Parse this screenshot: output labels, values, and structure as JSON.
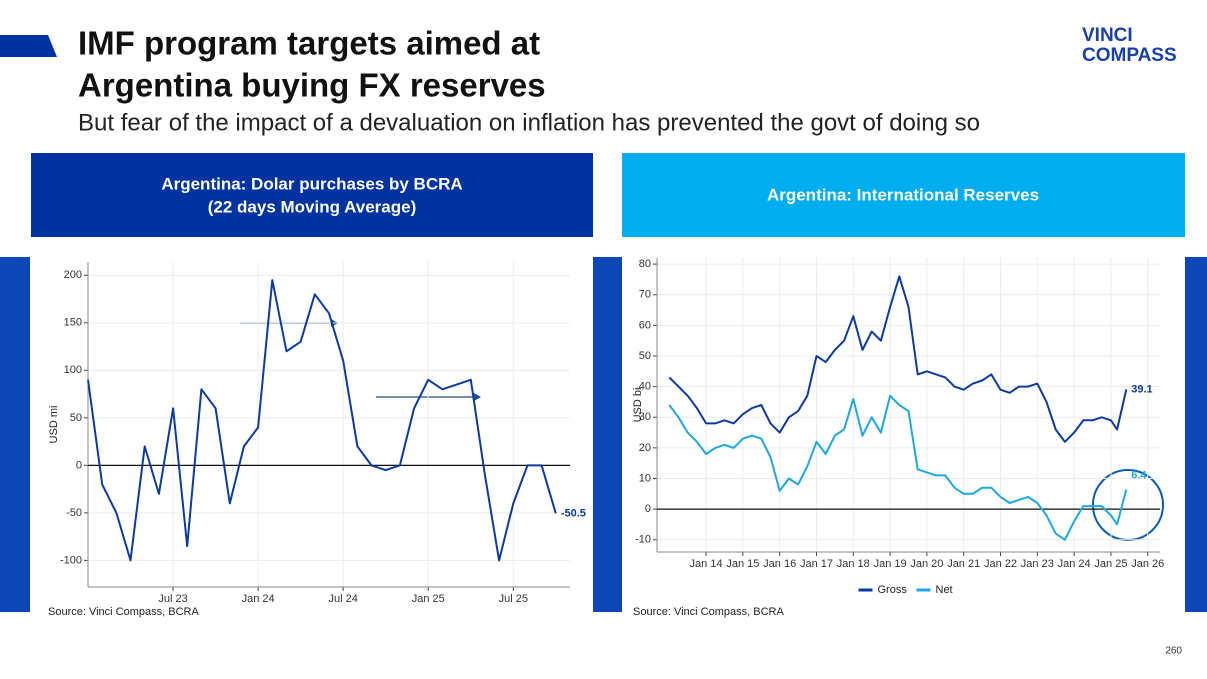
{
  "header": {
    "title": [
      "IMF program targets aimed at",
      "Argentina buying FX reserves"
    ],
    "subtitle": "But fear of the impact of a devaluation on inflation has prevented the govt of doing so",
    "logo": [
      "VINCI",
      "COMPASS"
    ]
  },
  "page_number": "260",
  "chart_data": [
    {
      "type": "line",
      "title": "Argentina: Dolar purchases by BCRA",
      "subtitle": "(22 days Moving Average)",
      "y_label": "USD mi",
      "source": "Source: Vinci Compass, BCRA",
      "grid": true,
      "reference_line": 0,
      "x": [
        "2023-01",
        "2023-02",
        "2023-03",
        "2023-04",
        "2023-05",
        "2023-06",
        "2023-07",
        "2023-08",
        "2023-09",
        "2023-10",
        "2023-11",
        "2023-12",
        "2024-01",
        "2024-02",
        "2024-03",
        "2024-04",
        "2024-05",
        "2024-06",
        "2024-07",
        "2024-08",
        "2024-09",
        "2024-10",
        "2024-11",
        "2024-12",
        "2025-01",
        "2025-02",
        "2025-03",
        "2025-04",
        "2025-05",
        "2025-06",
        "2025-07",
        "2025-08",
        "2025-09",
        "2025-10"
      ],
      "series": [
        {
          "color": "#0d3a9e",
          "values": [
            90,
            -20,
            -50,
            -100,
            20,
            -30,
            60,
            -85,
            80,
            60,
            -40,
            20,
            40,
            195,
            120,
            130,
            180,
            160,
            110,
            20,
            0,
            -5,
            0,
            60,
            90,
            80,
            85,
            90,
            -10,
            -100,
            -40,
            0,
            0,
            -50.5
          ]
        }
      ],
      "xlim": [
        "2023-01",
        "2025-11"
      ],
      "xticks": [
        {
          "value": "2023-07",
          "label": "Jul 23"
        },
        {
          "value": "2024-01",
          "label": "Jan 24"
        },
        {
          "value": "2024-07",
          "label": "Jul 24"
        },
        {
          "value": "2025-01",
          "label": "Jan 25"
        },
        {
          "value": "2025-07",
          "label": "Jul 25"
        }
      ],
      "ylim": [
        -128,
        214
      ],
      "yticks": [
        -100,
        -50,
        0,
        50,
        100,
        150,
        200
      ]
    },
    {
      "type": "line",
      "title": "Argentina: International Reserves",
      "y_label": "USD bi",
      "source": "Source: Vinci Compass, BCRA",
      "grid": true,
      "reference_line": 0,
      "x": [
        "2013-01",
        "2013-04",
        "2013-07",
        "2013-10",
        "2014-01",
        "2014-04",
        "2014-07",
        "2014-10",
        "2015-01",
        "2015-04",
        "2015-07",
        "2015-10",
        "2016-01",
        "2016-04",
        "2016-07",
        "2016-10",
        "2017-01",
        "2017-04",
        "2017-07",
        "2017-10",
        "2018-01",
        "2018-04",
        "2018-07",
        "2018-10",
        "2019-01",
        "2019-04",
        "2019-07",
        "2019-10",
        "2020-01",
        "2020-04",
        "2020-07",
        "2020-10",
        "2021-01",
        "2021-04",
        "2021-07",
        "2021-10",
        "2022-01",
        "2022-04",
        "2022-07",
        "2022-10",
        "2023-01",
        "2023-04",
        "2023-07",
        "2023-10",
        "2024-01",
        "2024-04",
        "2024-07",
        "2024-10",
        "2025-01",
        "2025-03",
        "2025-06"
      ],
      "series": [
        {
          "name": "Gross",
          "color": "#0d3a9e",
          "values": [
            43,
            40,
            37,
            33,
            28,
            28,
            29,
            28,
            31,
            33,
            34,
            28,
            25,
            30,
            32,
            37,
            50,
            48,
            52,
            55,
            63,
            52,
            58,
            55,
            66,
            76,
            66,
            44,
            45,
            44,
            43,
            40,
            39,
            41,
            42,
            44,
            39,
            38,
            40,
            40,
            41,
            35,
            26,
            22,
            25,
            29,
            29,
            30,
            29,
            26,
            39.1
          ]
        },
        {
          "name": "Net",
          "color": "#1ea7e1",
          "values": [
            34,
            30,
            25,
            22,
            18,
            20,
            21,
            20,
            23,
            24,
            23,
            17,
            6,
            10,
            8,
            14,
            22,
            18,
            24,
            26,
            36,
            24,
            30,
            25,
            37,
            34,
            32,
            13,
            12,
            11,
            11,
            7,
            5,
            5,
            7,
            7,
            4,
            2,
            3,
            4,
            2,
            -2,
            -8,
            -10,
            -4,
            1,
            1,
            1,
            -2,
            -5,
            6.4
          ]
        }
      ],
      "xlim": [
        "2012-09",
        "2026-05"
      ],
      "xticks": [
        {
          "value": "2014-01",
          "label": "Jan 14"
        },
        {
          "value": "2015-01",
          "label": "Jan 15"
        },
        {
          "value": "2016-01",
          "label": "Jan 16"
        },
        {
          "value": "2017-01",
          "label": "Jan 17"
        },
        {
          "value": "2018-01",
          "label": "Jan 18"
        },
        {
          "value": "2019-01",
          "label": "Jan 19"
        },
        {
          "value": "2020-01",
          "label": "Jan 20"
        },
        {
          "value": "2021-01",
          "label": "Jan 21"
        },
        {
          "value": "2022-01",
          "label": "Jan 22"
        },
        {
          "value": "2023-01",
          "label": "Jan 23"
        },
        {
          "value": "2024-01",
          "label": "Jan 24"
        },
        {
          "value": "2025-01",
          "label": "Jan 25"
        },
        {
          "value": "2026-01",
          "label": "Jan 26"
        }
      ],
      "ylim": [
        -14,
        82
      ],
      "yticks": [
        -10,
        0,
        10,
        20,
        30,
        40,
        50,
        60,
        70,
        80
      ]
    }
  ]
}
